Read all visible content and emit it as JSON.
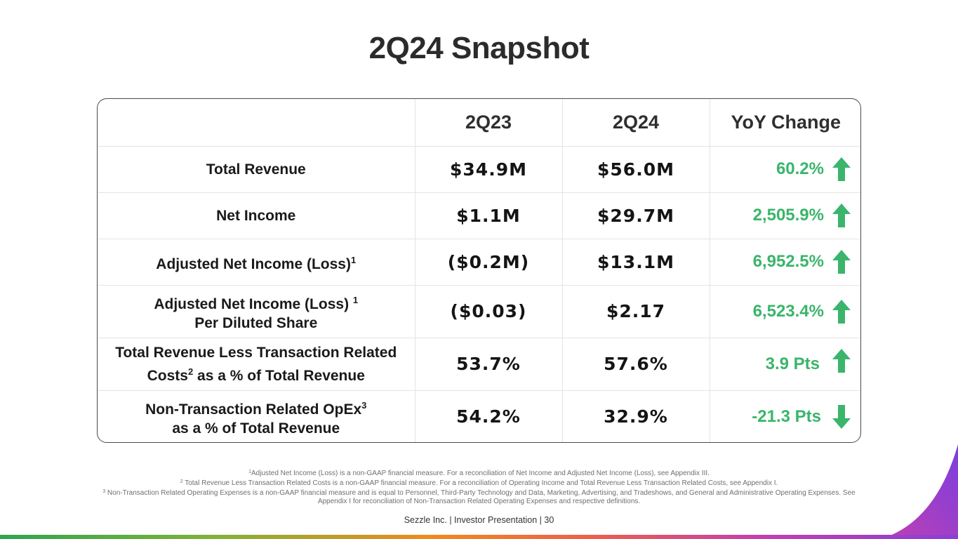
{
  "page": {
    "title": "2Q24 Snapshot"
  },
  "table": {
    "headers": [
      "",
      "2Q23",
      "2Q24",
      "YoY Change"
    ],
    "rows": [
      {
        "label_line1": "Total Revenue",
        "label_sup": "",
        "label_line2": "",
        "v2q23": "$34.9M",
        "v2q24": "$56.0M",
        "change": "60.2%",
        "direction": "up"
      },
      {
        "label_line1": "Net Income",
        "label_sup": "",
        "label_line2": "",
        "v2q23": "$1.1M",
        "v2q24": "$29.7M",
        "change": "2,505.9%",
        "direction": "up"
      },
      {
        "label_line1": "Adjusted Net Income (Loss)",
        "label_sup": "1",
        "label_line2": "",
        "v2q23": "($0.2M)",
        "v2q24": "$13.1M",
        "change": "6,952.5%",
        "direction": "up"
      },
      {
        "label_line1": "Adjusted Net Income (Loss) ",
        "label_sup": "1",
        "label_line2": "Per Diluted Share",
        "v2q23": "($0.03)",
        "v2q24": "$2.17",
        "change": "6,523.4%",
        "direction": "up"
      },
      {
        "label_line1": "Total Revenue Less Transaction Related",
        "label_pre": "Costs",
        "label_sup": "2",
        "label_line2": " as a % of Total Revenue",
        "v2q23": "53.7%",
        "v2q24": "57.6%",
        "change": "3.9 Pts",
        "direction": "up"
      },
      {
        "label_line1": "Non-Transaction Related OpEx",
        "label_sup": "3",
        "label_line2": "as a % of Total Revenue",
        "v2q23": "54.2%",
        "v2q24": "32.9%",
        "change": "-21.3 Pts",
        "direction": "down"
      }
    ]
  },
  "footnotes": [
    {
      "num": "1",
      "text": "Adjusted Net Income (Loss) is a non-GAAP financial measure. For a reconciliation of Net Income and Adjusted Net Income (Loss), see Appendix III."
    },
    {
      "num": "2",
      "text": " Total Revenue Less Transaction Related Costs is a non-GAAP financial measure. For a reconciliation of Operating Income and Total Revenue Less Transaction Related Costs, see Appendix I."
    },
    {
      "num": "3",
      "text": " Non-Transaction Related Operating Expenses is a non-GAAP financial measure and is equal to Personnel, Third-Party Technology and Data, Marketing, Advertising, and Tradeshows, and General and Administrative Operating Expenses. See Appendix I for reconciliation of Non-Transaction Related Operating Expenses and respective definitions."
    }
  ],
  "footer": {
    "text": "Sezzle Inc. | Investor Presentation | 30"
  },
  "colors": {
    "positive": "#3ab56b",
    "accent_purple": "#8a3fd6"
  }
}
